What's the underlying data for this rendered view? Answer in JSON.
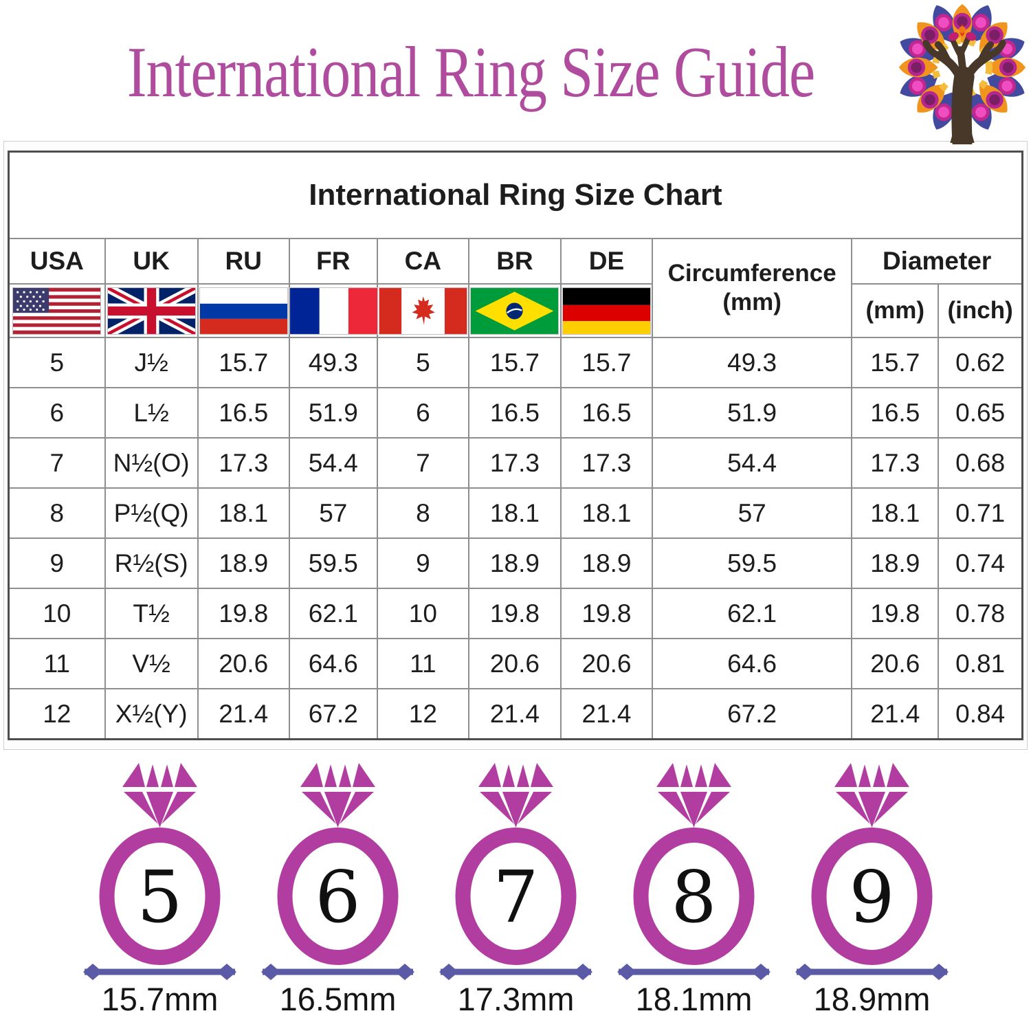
{
  "page": {
    "title": "International Ring Size Guide"
  },
  "table": {
    "title": "International Ring Size Chart",
    "columns": [
      {
        "code": "USA",
        "flag": "usa"
      },
      {
        "code": "UK",
        "flag": "uk"
      },
      {
        "code": "RU",
        "flag": "russia"
      },
      {
        "code": "FR",
        "flag": "france"
      },
      {
        "code": "CA",
        "flag": "canada"
      },
      {
        "code": "BR",
        "flag": "brazil"
      },
      {
        "code": "DE",
        "flag": "germany"
      }
    ],
    "circumference_header": {
      "line1": "Circumference",
      "line2": "(mm)"
    },
    "diameter_header": {
      "label": "Diameter",
      "sub_mm": "(mm)",
      "sub_inch": "(inch)"
    },
    "rows": [
      [
        "5",
        "J½",
        "15.7",
        "49.3",
        "5",
        "15.7",
        "15.7",
        "49.3",
        "15.7",
        "0.62"
      ],
      [
        "6",
        "L½",
        "16.5",
        "51.9",
        "6",
        "16.5",
        "16.5",
        "51.9",
        "16.5",
        "0.65"
      ],
      [
        "7",
        "N½(O)",
        "17.3",
        "54.4",
        "7",
        "17.3",
        "17.3",
        "54.4",
        "17.3",
        "0.68"
      ],
      [
        "8",
        "P½(Q)",
        "18.1",
        "57",
        "8",
        "18.1",
        "18.1",
        "57",
        "18.1",
        "0.71"
      ],
      [
        "9",
        "R½(S)",
        "18.9",
        "59.5",
        "9",
        "18.9",
        "18.9",
        "59.5",
        "18.9",
        "0.74"
      ],
      [
        "10",
        "T½",
        "19.8",
        "62.1",
        "10",
        "19.8",
        "19.8",
        "62.1",
        "19.8",
        "0.78"
      ],
      [
        "11",
        "V½",
        "20.6",
        "64.6",
        "11",
        "20.6",
        "20.6",
        "64.6",
        "20.6",
        "0.81"
      ],
      [
        "12",
        "X½(Y)",
        "21.4",
        "67.2",
        "12",
        "21.4",
        "21.4",
        "67.2",
        "21.4",
        "0.84"
      ]
    ]
  },
  "rings": {
    "items": [
      {
        "size": "5",
        "diameter": "15.7mm"
      },
      {
        "size": "6",
        "diameter": "16.5mm"
      },
      {
        "size": "7",
        "diameter": "17.3mm"
      },
      {
        "size": "8",
        "diameter": "18.1mm"
      },
      {
        "size": "9",
        "diameter": "18.9mm"
      }
    ]
  },
  "colors": {
    "title_magenta": "#b04c9e",
    "ring_magenta": "#b13da1",
    "measure_indigo": "#5b5aa7"
  }
}
